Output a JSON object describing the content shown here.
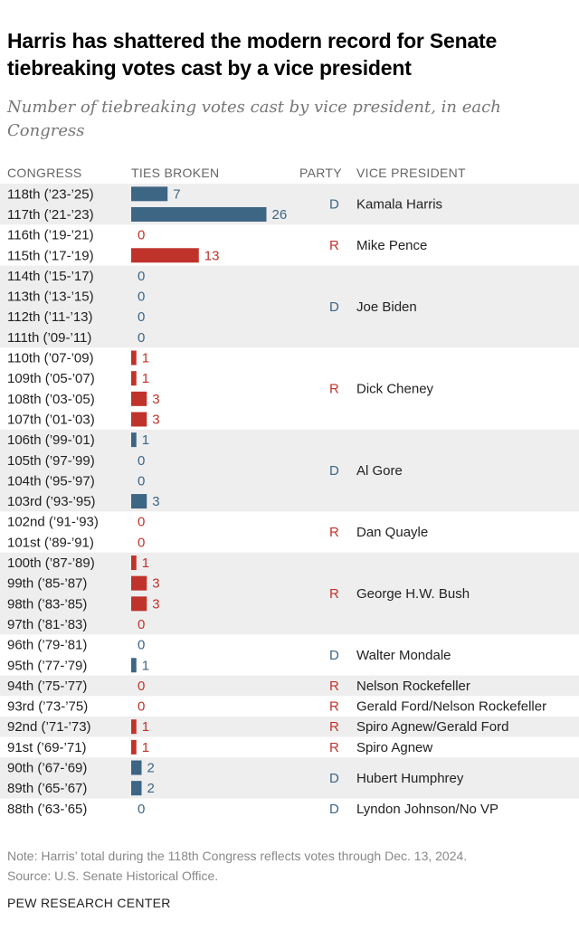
{
  "title": "Harris has shattered the modern record for Senate tiebreaking votes cast by a vice president",
  "subtitle": "Number of tiebreaking votes cast by vice president, in each Congress",
  "headers": {
    "congress": "CONGRESS",
    "ties": "TIES BROKEN",
    "party": "PARTY",
    "vp": "VICE PRESIDENT"
  },
  "note": "Note: Harris’ total during the 118th Congress reflects votes through Dec. 13, 2024.",
  "source": "Source: U.S. Senate Historical Office.",
  "brand": "PEW RESEARCH CENTER",
  "colors": {
    "D": "#3d6584",
    "R": "#c0332b",
    "band": "#eeeeee"
  },
  "chart_data": {
    "type": "bar",
    "orientation": "horizontal",
    "categories": [
      "118th ('23-'25)",
      "117th ('21-'23)",
      "116th ('19-'21)",
      "115th ('17-'19)",
      "114th ('15-'17)",
      "113th ('13-'15)",
      "112th ('11-'13)",
      "111th ('09-'11)",
      "110th ('07-'09)",
      "109th ('05-'07)",
      "108th ('03-'05)",
      "107th ('01-'03)",
      "106th ('99-'01)",
      "105th ('97-'99)",
      "104th ('95-'97)",
      "103rd ('93-'95)",
      "102nd ('91-'93)",
      "101st ('89-'91)",
      "100th ('87-'89)",
      "99th ('85-'87)",
      "98th ('83-'85)",
      "97th ('81-'83)",
      "96th ('79-'81)",
      "95th ('77-'79)",
      "94th ('75-'77)",
      "93rd ('73-'75)",
      "92nd ('71-'73)",
      "91st ('69-'71)",
      "90th ('67-'69)",
      "89th ('65-'67)",
      "88th ('63-'65)"
    ],
    "values": [
      7,
      26,
      0,
      13,
      0,
      0,
      0,
      0,
      1,
      1,
      3,
      3,
      1,
      0,
      0,
      3,
      0,
      0,
      1,
      3,
      3,
      0,
      0,
      1,
      0,
      0,
      1,
      1,
      2,
      2,
      0
    ],
    "party": [
      "D",
      "D",
      "R",
      "R",
      "D",
      "D",
      "D",
      "D",
      "R",
      "R",
      "R",
      "R",
      "D",
      "D",
      "D",
      "D",
      "R",
      "R",
      "R",
      "R",
      "R",
      "R",
      "D",
      "D",
      "R",
      "R",
      "R",
      "R",
      "D",
      "D",
      "D"
    ],
    "groups": [
      {
        "vp": "Kamala Harris",
        "party": "D",
        "rows": 2,
        "band": true
      },
      {
        "vp": "Mike Pence",
        "party": "R",
        "rows": 2,
        "band": false
      },
      {
        "vp": "Joe Biden",
        "party": "D",
        "rows": 4,
        "band": true
      },
      {
        "vp": "Dick Cheney",
        "party": "R",
        "rows": 4,
        "band": false
      },
      {
        "vp": "Al Gore",
        "party": "D",
        "rows": 4,
        "band": true
      },
      {
        "vp": "Dan Quayle",
        "party": "R",
        "rows": 2,
        "band": false
      },
      {
        "vp": "George H.W. Bush",
        "party": "R",
        "rows": 4,
        "band": true
      },
      {
        "vp": "Walter Mondale",
        "party": "D",
        "rows": 2,
        "band": false
      },
      {
        "vp": "Nelson Rockefeller",
        "party": "R",
        "rows": 1,
        "band": true
      },
      {
        "vp": "Gerald Ford/Nelson Rockefeller",
        "party": "R",
        "rows": 1,
        "band": false
      },
      {
        "vp": "Spiro Agnew/Gerald Ford",
        "party": "R",
        "rows": 1,
        "band": true
      },
      {
        "vp": "Spiro Agnew",
        "party": "R",
        "rows": 1,
        "band": false
      },
      {
        "vp": "Hubert Humphrey",
        "party": "D",
        "rows": 2,
        "band": true
      },
      {
        "vp": "Lyndon Johnson/No VP",
        "party": "D",
        "rows": 1,
        "band": false
      }
    ]
  }
}
